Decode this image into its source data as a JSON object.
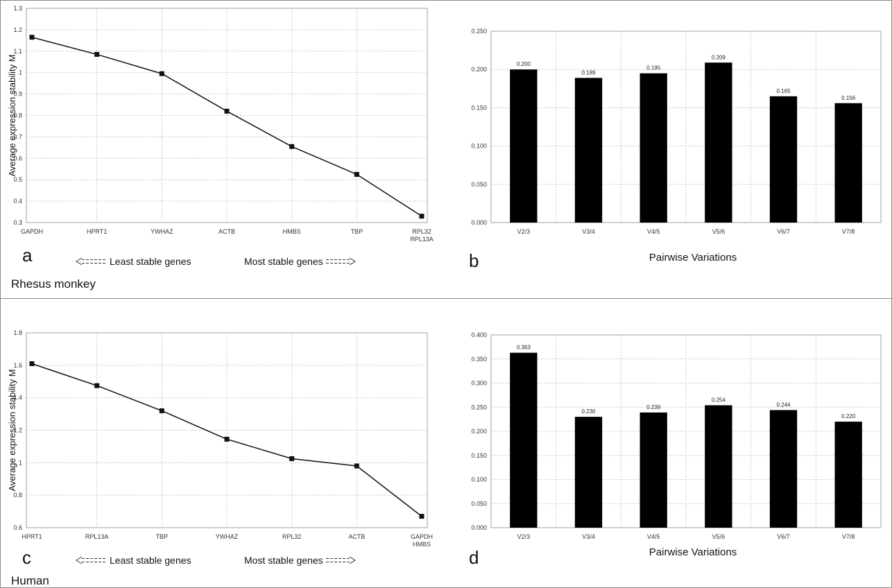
{
  "sections": {
    "top_label": "Rhesus monkey",
    "bottom_label": "Human"
  },
  "colors": {
    "line": "#111111",
    "bar": "#000000",
    "grid": "#c8c8c8",
    "frame": "#888888"
  },
  "chart_data": [
    {
      "panel": "a",
      "type": "line",
      "ylabel": "Average expression stability M",
      "categories": [
        "GAPDH",
        "HPRT1",
        "YWHAZ",
        "ACTB",
        "HMBS",
        "TBP",
        "RPL32\nRPL13A"
      ],
      "values": [
        1.165,
        1.085,
        0.995,
        0.82,
        0.655,
        0.525,
        0.33
      ],
      "ylim": [
        0.3,
        1.3
      ],
      "yticks": [
        "0.3",
        "0.4",
        "0.5",
        "0.6",
        "0.7",
        "0.8",
        "0.9",
        "1",
        "1.1",
        "1.2",
        "1.3"
      ],
      "grid": true,
      "annotation_left": "Least stable genes",
      "annotation_right": "Most stable genes"
    },
    {
      "panel": "b",
      "type": "bar",
      "xlabel": "Pairwise Variations",
      "categories": [
        "V2/3",
        "V3/4",
        "V4/5",
        "V5/6",
        "V6/7",
        "V7/8"
      ],
      "values": [
        0.2,
        0.189,
        0.195,
        0.209,
        0.165,
        0.156
      ],
      "data_labels": [
        "0.200",
        "0.189",
        "0.195",
        "0.209",
        "0.165",
        "0.156"
      ],
      "ylim": [
        0,
        0.25
      ],
      "yticks": [
        "0.000",
        "0.050",
        "0.100",
        "0.150",
        "0.200",
        "0.250"
      ],
      "grid": true
    },
    {
      "panel": "c",
      "type": "line",
      "ylabel": "Average expression stability M",
      "categories": [
        "HPRT1",
        "RPL13A",
        "TBP",
        "YWHAZ",
        "RPL32",
        "ACTB",
        "GAPDH\nHMBS"
      ],
      "values": [
        1.61,
        1.475,
        1.32,
        1.145,
        1.025,
        0.98,
        0.67
      ],
      "ylim": [
        0.6,
        1.8
      ],
      "yticks": [
        "0.6",
        "0.8",
        "1",
        "1.2",
        "1.4",
        "1.6",
        "1.8"
      ],
      "grid": true,
      "annotation_left": "Least stable genes",
      "annotation_right": "Most stable genes"
    },
    {
      "panel": "d",
      "type": "bar",
      "xlabel": "Pairwise Variations",
      "categories": [
        "V2/3",
        "V3/4",
        "V4/5",
        "V5/6",
        "V6/7",
        "V7/8"
      ],
      "values": [
        0.363,
        0.23,
        0.239,
        0.254,
        0.244,
        0.22
      ],
      "data_labels": [
        "0.363",
        "0.230",
        "0.239",
        "0.254",
        "0.244",
        "0.220"
      ],
      "ylim": [
        0,
        0.4
      ],
      "yticks": [
        "0.000",
        "0.050",
        "0.100",
        "0.150",
        "0.200",
        "0.250",
        "0.300",
        "0.350",
        "0.400"
      ],
      "grid": true
    }
  ]
}
